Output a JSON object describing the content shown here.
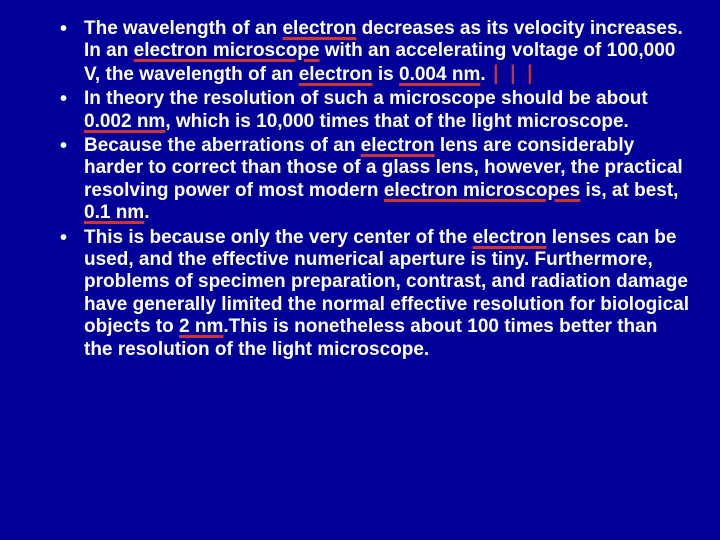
{
  "background_color": "#000099",
  "text_color": "#ffffff",
  "underline_color": "#cc3333",
  "cursor_color": "#cc3333",
  "font_family": "Comic Sans MS",
  "font_size_pt": 15,
  "font_weight": "bold",
  "bullets": [
    {
      "segments": [
        {
          "t": "The wavelength of an "
        },
        {
          "t": "electron",
          "u": true
        },
        {
          "t": " decreases as its velocity increases. In an "
        },
        {
          "t": "electron microscope",
          "u": true
        },
        {
          "t": " with an accelerating voltage of 100,000 V, the wavelength of an "
        },
        {
          "t": "electron",
          "u": true
        },
        {
          "t": " is "
        },
        {
          "t": "0.004 nm",
          "u": true
        },
        {
          "t": "."
        },
        {
          "t": " ⎸⎸⎸",
          "cursor": true
        }
      ]
    },
    {
      "segments": [
        {
          "t": "In theory the resolution of such a microscope should be about "
        },
        {
          "t": "0.002 nm",
          "u": true
        },
        {
          "t": ", which is 10,000 times that of the light microscope."
        }
      ]
    },
    {
      "segments": [
        {
          "t": "Because the aberrations of an "
        },
        {
          "t": "electron",
          "u": true
        },
        {
          "t": " lens are considerably harder to correct than those of a glass lens, however, the practical resolving power of most modern "
        },
        {
          "t": "electron microscopes",
          "u": true
        },
        {
          "t": " is, at best, "
        },
        {
          "t": "0.1 nm",
          "u": true
        },
        {
          "t": "."
        }
      ]
    },
    {
      "segments": [
        {
          "t": "This is because only the very center of the "
        },
        {
          "t": "electron",
          "u": true
        },
        {
          "t": " lenses can be used, and the effective numerical aperture is tiny. Furthermore, problems of specimen preparation, contrast, and radiation damage have generally limited the normal effective resolution for biological objects to "
        },
        {
          "t": "2 nm",
          "u": true
        },
        {
          "t": ".This is nonetheless about 100 times better than the resolution of the light microscope."
        }
      ]
    }
  ]
}
